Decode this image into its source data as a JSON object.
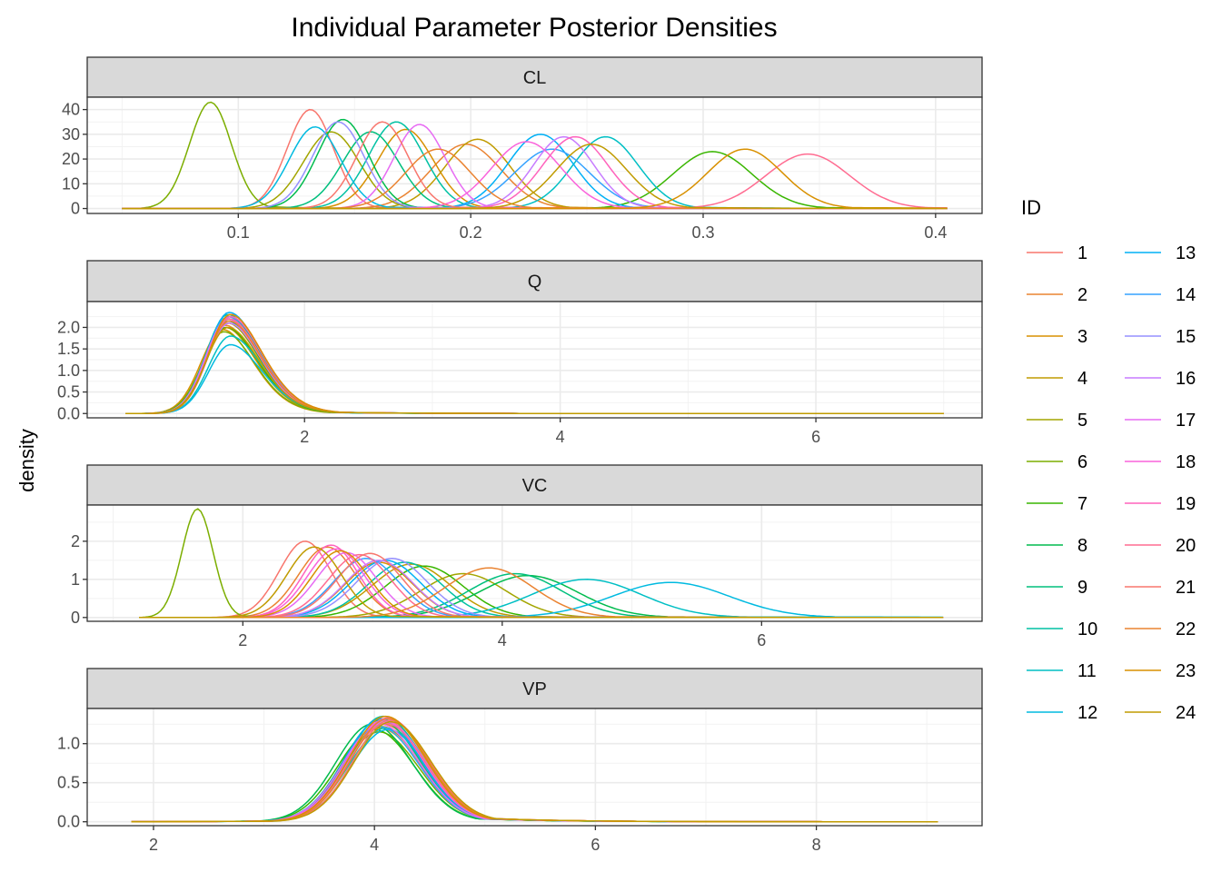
{
  "chart_data": {
    "type": "line",
    "title": "Individual Parameter Posterior Densities",
    "ylabel": "density",
    "xlabel": "",
    "grid": true,
    "legend": {
      "title": "ID",
      "placement": "right",
      "entries": [
        "1",
        "2",
        "3",
        "4",
        "5",
        "6",
        "7",
        "8",
        "9",
        "10",
        "11",
        "12",
        "13",
        "14",
        "15",
        "16",
        "17",
        "18",
        "19",
        "20",
        "21",
        "22",
        "23",
        "24"
      ]
    },
    "colors": [
      "#F8766D",
      "#EA8331",
      "#D89000",
      "#C09B00",
      "#A3A500",
      "#7CAE00",
      "#39B600",
      "#00BB4E",
      "#00BF7D",
      "#00C1A3",
      "#00BFC4",
      "#00BAE0",
      "#00B0F6",
      "#35A2FF",
      "#9590FF",
      "#C77CFF",
      "#E76BF3",
      "#FA62DB",
      "#FF62BC",
      "#FF6C91",
      "#F8766D",
      "#EA8331",
      "#D89000",
      "#C09B00"
    ],
    "panels": [
      {
        "name": "CL",
        "xlim": [
          0.035,
          0.42
        ],
        "ylim": [
          -2,
          45
        ],
        "x_ticks": [
          0.1,
          0.2,
          0.3,
          0.4
        ],
        "x_tick_labels": [
          "0.1",
          "0.2",
          "0.3",
          "0.4"
        ],
        "y_ticks": [
          0,
          10,
          20,
          30,
          40
        ],
        "y_tick_labels": [
          "0",
          "10",
          "20",
          "30",
          "40"
        ],
        "x_range": [
          0.05,
          0.405
        ],
        "series": [
          {
            "id": "1",
            "peak": 0.131,
            "sd": 0.01,
            "height": 40
          },
          {
            "id": "2",
            "peak": 0.198,
            "sd": 0.015,
            "height": 26
          },
          {
            "id": "3",
            "peak": 0.172,
            "sd": 0.012,
            "height": 32
          },
          {
            "id": "4",
            "peak": 0.203,
            "sd": 0.014,
            "height": 28
          },
          {
            "id": "5",
            "peak": 0.14,
            "sd": 0.012,
            "height": 31
          },
          {
            "id": "6",
            "peak": 0.088,
            "sd": 0.009,
            "height": 43
          },
          {
            "id": "7",
            "peak": 0.304,
            "sd": 0.017,
            "height": 23
          },
          {
            "id": "8",
            "peak": 0.145,
            "sd": 0.011,
            "height": 36
          },
          {
            "id": "9",
            "peak": 0.157,
            "sd": 0.012,
            "height": 31
          },
          {
            "id": "10",
            "peak": 0.168,
            "sd": 0.012,
            "height": 35
          },
          {
            "id": "11",
            "peak": 0.258,
            "sd": 0.014,
            "height": 29
          },
          {
            "id": "12",
            "peak": 0.133,
            "sd": 0.011,
            "height": 33
          },
          {
            "id": "13",
            "peak": 0.23,
            "sd": 0.014,
            "height": 30
          },
          {
            "id": "14",
            "peak": 0.235,
            "sd": 0.016,
            "height": 24
          },
          {
            "id": "15",
            "peak": 0.143,
            "sd": 0.011,
            "height": 35
          },
          {
            "id": "16",
            "peak": 0.24,
            "sd": 0.013,
            "height": 29
          },
          {
            "id": "17",
            "peak": 0.178,
            "sd": 0.011,
            "height": 34
          },
          {
            "id": "18",
            "peak": 0.224,
            "sd": 0.015,
            "height": 27
          },
          {
            "id": "19",
            "peak": 0.245,
            "sd": 0.014,
            "height": 29
          },
          {
            "id": "20",
            "peak": 0.345,
            "sd": 0.018,
            "height": 22
          },
          {
            "id": "21",
            "peak": 0.162,
            "sd": 0.011,
            "height": 35
          },
          {
            "id": "22",
            "peak": 0.186,
            "sd": 0.014,
            "height": 24
          },
          {
            "id": "23",
            "peak": 0.318,
            "sd": 0.016,
            "height": 24
          },
          {
            "id": "24",
            "peak": 0.252,
            "sd": 0.015,
            "height": 26
          }
        ]
      },
      {
        "name": "Q",
        "xlim": [
          0.3,
          7.3
        ],
        "ylim": [
          -0.1,
          2.6
        ],
        "x_ticks": [
          2,
          4,
          6
        ],
        "x_tick_labels": [
          "2",
          "4",
          "6"
        ],
        "y_ticks": [
          0,
          0.5,
          1.0,
          1.5,
          2.0
        ],
        "y_tick_labels": [
          "0.0",
          "0.5",
          "1.0",
          "1.5",
          "2.0"
        ],
        "x_range": [
          0.6,
          7.0
        ],
        "series": [
          {
            "id": "1",
            "peak": 1.4,
            "height": 2.2
          },
          {
            "id": "2",
            "peak": 1.38,
            "height": 2.05
          },
          {
            "id": "3",
            "peak": 1.36,
            "height": 1.95
          },
          {
            "id": "4",
            "peak": 1.38,
            "height": 2.0
          },
          {
            "id": "5",
            "peak": 1.4,
            "height": 2.1
          },
          {
            "id": "6",
            "peak": 1.37,
            "height": 1.9
          },
          {
            "id": "7",
            "peak": 1.39,
            "height": 2.0
          },
          {
            "id": "8",
            "peak": 1.4,
            "height": 2.15
          },
          {
            "id": "9",
            "peak": 1.41,
            "height": 2.25
          },
          {
            "id": "10",
            "peak": 1.4,
            "height": 2.3
          },
          {
            "id": "11",
            "peak": 1.42,
            "height": 1.8
          },
          {
            "id": "12",
            "peak": 1.42,
            "height": 1.6
          },
          {
            "id": "13",
            "peak": 1.41,
            "height": 2.35
          },
          {
            "id": "14",
            "peak": 1.4,
            "height": 2.25
          },
          {
            "id": "15",
            "peak": 1.4,
            "height": 2.2
          },
          {
            "id": "16",
            "peak": 1.41,
            "height": 2.1
          },
          {
            "id": "17",
            "peak": 1.4,
            "height": 2.2
          },
          {
            "id": "18",
            "peak": 1.41,
            "height": 2.15
          },
          {
            "id": "19",
            "peak": 1.42,
            "height": 2.25
          },
          {
            "id": "20",
            "peak": 1.41,
            "height": 2.2
          },
          {
            "id": "21",
            "peak": 1.42,
            "height": 2.3
          },
          {
            "id": "22",
            "peak": 1.41,
            "height": 2.15
          },
          {
            "id": "23",
            "peak": 1.42,
            "height": 2.3
          },
          {
            "id": "24",
            "peak": 1.4,
            "height": 2.0
          }
        ]
      },
      {
        "name": "VC",
        "xlim": [
          0.8,
          7.7
        ],
        "ylim": [
          -0.1,
          2.95
        ],
        "x_ticks": [
          2,
          4,
          6
        ],
        "x_tick_labels": [
          "2",
          "4",
          "6"
        ],
        "y_ticks": [
          0,
          1,
          2
        ],
        "y_tick_labels": [
          "0",
          "1",
          "2"
        ],
        "x_range": [
          1.2,
          7.4
        ],
        "series": [
          {
            "id": "1",
            "peak": 2.48,
            "sd": 0.2,
            "height": 2.0
          },
          {
            "id": "2",
            "peak": 2.65,
            "sd": 0.22,
            "height": 1.85
          },
          {
            "id": "3",
            "peak": 3.05,
            "sd": 0.26,
            "height": 1.45
          },
          {
            "id": "4",
            "peak": 3.3,
            "sd": 0.3,
            "height": 1.4
          },
          {
            "id": "5",
            "peak": 3.7,
            "sd": 0.33,
            "height": 1.15
          },
          {
            "id": "6",
            "peak": 1.65,
            "sd": 0.12,
            "height": 2.85
          },
          {
            "id": "7",
            "peak": 3.4,
            "sd": 0.3,
            "height": 1.35
          },
          {
            "id": "8",
            "peak": 4.2,
            "sd": 0.38,
            "height": 1.1
          },
          {
            "id": "9",
            "peak": 4.1,
            "sd": 0.36,
            "height": 1.15
          },
          {
            "id": "10",
            "peak": 3.25,
            "sd": 0.28,
            "height": 1.45
          },
          {
            "id": "11",
            "peak": 4.65,
            "sd": 0.42,
            "height": 1.0
          },
          {
            "id": "12",
            "peak": 5.3,
            "sd": 0.45,
            "height": 0.92
          },
          {
            "id": "13",
            "peak": 3.1,
            "sd": 0.27,
            "height": 1.5
          },
          {
            "id": "14",
            "peak": 2.95,
            "sd": 0.25,
            "height": 1.55
          },
          {
            "id": "15",
            "peak": 3.15,
            "sd": 0.27,
            "height": 1.55
          },
          {
            "id": "16",
            "peak": 3.05,
            "sd": 0.26,
            "height": 1.5
          },
          {
            "id": "17",
            "peak": 2.8,
            "sd": 0.23,
            "height": 1.7
          },
          {
            "id": "18",
            "peak": 2.72,
            "sd": 0.22,
            "height": 1.8
          },
          {
            "id": "19",
            "peak": 2.68,
            "sd": 0.21,
            "height": 1.9
          },
          {
            "id": "20",
            "peak": 2.9,
            "sd": 0.24,
            "height": 1.65
          },
          {
            "id": "21",
            "peak": 2.98,
            "sd": 0.25,
            "height": 1.68
          },
          {
            "id": "22",
            "peak": 3.9,
            "sd": 0.34,
            "height": 1.3
          },
          {
            "id": "23",
            "peak": 2.75,
            "sd": 0.22,
            "height": 1.75
          },
          {
            "id": "24",
            "peak": 2.55,
            "sd": 0.21,
            "height": 1.85
          }
        ]
      },
      {
        "name": "VP",
        "xlim": [
          1.4,
          9.5
        ],
        "ylim": [
          -0.05,
          1.45
        ],
        "x_ticks": [
          2,
          4,
          6,
          8
        ],
        "x_tick_labels": [
          "2",
          "4",
          "6",
          "8"
        ],
        "y_ticks": [
          0,
          0.5,
          1.0
        ],
        "y_tick_labels": [
          "0.0",
          "0.5",
          "1.0"
        ],
        "x_range": [
          1.8,
          9.1
        ],
        "series": [
          {
            "id": "1",
            "peak": 4.1,
            "height": 1.3
          },
          {
            "id": "2",
            "peak": 4.08,
            "height": 1.25
          },
          {
            "id": "3",
            "peak": 4.05,
            "height": 1.2
          },
          {
            "id": "4",
            "peak": 4.1,
            "height": 1.28
          },
          {
            "id": "5",
            "peak": 4.06,
            "height": 1.22
          },
          {
            "id": "6",
            "peak": 4.04,
            "height": 1.15
          },
          {
            "id": "7",
            "peak": 4.0,
            "height": 1.18
          },
          {
            "id": "8",
            "peak": 3.98,
            "height": 1.25
          },
          {
            "id": "9",
            "peak": 4.05,
            "height": 1.3
          },
          {
            "id": "10",
            "peak": 4.08,
            "height": 1.35
          },
          {
            "id": "11",
            "peak": 4.1,
            "height": 1.2
          },
          {
            "id": "12",
            "peak": 4.12,
            "height": 1.18
          },
          {
            "id": "13",
            "peak": 4.06,
            "height": 1.32
          },
          {
            "id": "14",
            "peak": 4.04,
            "height": 1.22
          },
          {
            "id": "15",
            "peak": 4.08,
            "height": 1.3
          },
          {
            "id": "16",
            "peak": 4.1,
            "height": 1.28
          },
          {
            "id": "17",
            "peak": 4.05,
            "height": 1.25
          },
          {
            "id": "18",
            "peak": 4.08,
            "height": 1.3
          },
          {
            "id": "19",
            "peak": 4.12,
            "height": 1.33
          },
          {
            "id": "20",
            "peak": 4.1,
            "height": 1.26
          },
          {
            "id": "21",
            "peak": 4.14,
            "height": 1.3
          },
          {
            "id": "22",
            "peak": 4.12,
            "height": 1.32
          },
          {
            "id": "23",
            "peak": 4.1,
            "height": 1.35
          },
          {
            "id": "24",
            "peak": 4.15,
            "height": 1.28
          }
        ]
      }
    ]
  }
}
